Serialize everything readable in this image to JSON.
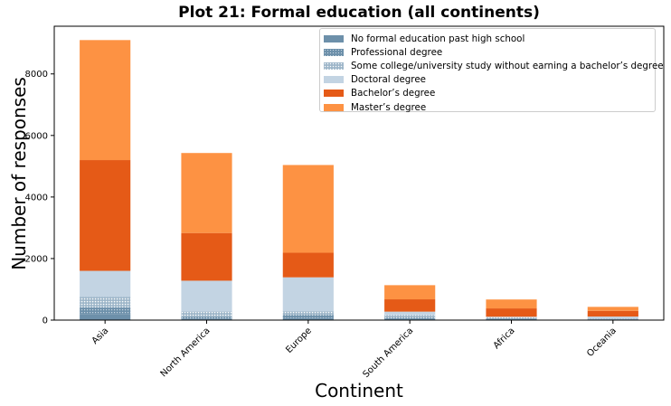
{
  "chart_data": {
    "type": "bar",
    "stacked": true,
    "title": "Plot 21: Formal education (all continents)",
    "xlabel": "Continent",
    "ylabel": "Number of responses",
    "categories": [
      "Asia",
      "North America",
      "Europe",
      "South America",
      "Africa",
      "Oceania"
    ],
    "ylim": [
      0,
      9550
    ],
    "yticks": [
      0,
      2000,
      4000,
      6000,
      8000
    ],
    "ytick_labels": [
      "0",
      "2000",
      "4000",
      "6000",
      "8000"
    ],
    "grid": false,
    "legend_position": "top-right",
    "series": [
      {
        "name": "No formal education past high school",
        "color": "#6d90aa",
        "pattern": "solid",
        "values": [
          200,
          40,
          70,
          30,
          30,
          10
        ]
      },
      {
        "name": "Professional degree",
        "color": "#6d90aa",
        "pattern": "dots",
        "values": [
          210,
          70,
          100,
          45,
          25,
          15
        ]
      },
      {
        "name": "Some college/university study without earning a bachelor’s degree",
        "color": "#a9bfd0",
        "pattern": "fine-dots",
        "values": [
          340,
          170,
          120,
          90,
          30,
          30
        ]
      },
      {
        "name": "Doctoral degree",
        "color": "#c3d4e3",
        "pattern": "solid",
        "values": [
          850,
          1000,
          1100,
          110,
          25,
          60
        ]
      },
      {
        "name": "Bachelor’s degree",
        "color": "#e55a17",
        "pattern": "solid",
        "values": [
          3600,
          1550,
          800,
          400,
          270,
          185
        ]
      },
      {
        "name": "Master’s degree",
        "color": "#fd9243",
        "pattern": "solid",
        "values": [
          3900,
          2600,
          2850,
          460,
          290,
          130
        ]
      }
    ]
  }
}
